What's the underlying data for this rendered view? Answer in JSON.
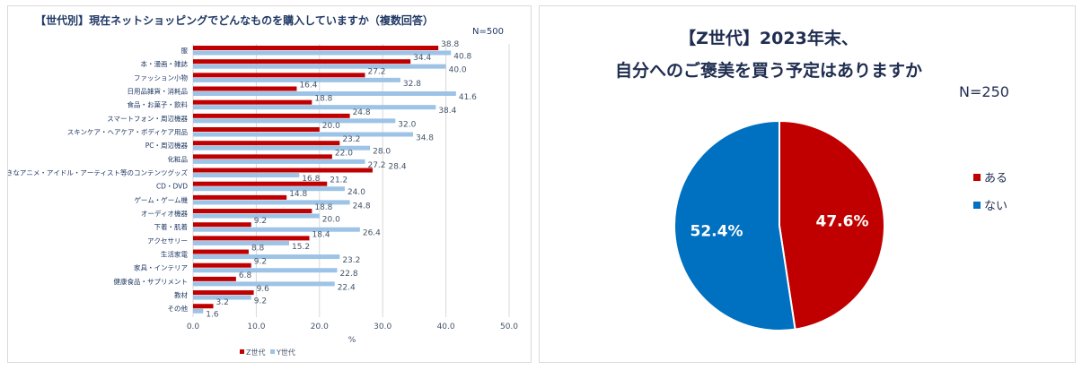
{
  "chart_data": [
    {
      "type": "bar",
      "orientation": "horizontal",
      "title": "【世代別】現在ネットショッピングでどんなものを購入していますか（複数回答）",
      "note": "N=500",
      "xlabel": "%",
      "xlim": [
        0,
        50
      ],
      "xticks": [
        "0.0",
        "10.0",
        "20.0",
        "30.0",
        "40.0",
        "50.0"
      ],
      "grid": true,
      "legend_position": "bottom",
      "categories": [
        "服",
        "本・漫画・雑誌",
        "ファッション小物",
        "日用品雑貨・消耗品",
        "食品・お菓子・飲料",
        "スマートフォン・周辺機器",
        "スキンケア・ヘアケア・ボディケア用品",
        "PC・周辺機器",
        "化粧品",
        "好きなアニメ・アイドル・アーティスト等のコンテンツグッズ",
        "CD・DVD",
        "ゲーム・ゲーム機",
        "オーディオ機器",
        "下着・肌着",
        "アクセサリー",
        "生活家電",
        "家具・インテリア",
        "健康食品・サプリメント",
        "教材",
        "その他"
      ],
      "series": [
        {
          "name": "Z世代",
          "color": "#c00000",
          "values": [
            38.8,
            34.4,
            27.2,
            16.4,
            18.8,
            24.8,
            20.0,
            23.2,
            22.0,
            28.4,
            21.2,
            14.8,
            18.8,
            9.2,
            18.4,
            8.8,
            9.2,
            6.8,
            9.6,
            3.2
          ]
        },
        {
          "name": "Y世代",
          "color": "#9dc3e6",
          "values": [
            40.8,
            40.0,
            32.8,
            41.6,
            38.4,
            32.0,
            34.8,
            28.0,
            27.2,
            16.8,
            24.0,
            24.8,
            20.0,
            26.4,
            15.2,
            23.2,
            22.8,
            22.4,
            9.2,
            1.6
          ]
        }
      ]
    },
    {
      "type": "pie",
      "title_lines": [
        "【Z世代】2023年末、",
        "自分へのご褒美を買う予定はありますか"
      ],
      "note": "N=250",
      "legend_position": "right",
      "slices": [
        {
          "label": "ある",
          "value": 47.6,
          "display": "47.6%",
          "color": "#c00000"
        },
        {
          "label": "ない",
          "value": 52.4,
          "display": "52.4%",
          "color": "#0070c0"
        }
      ]
    }
  ]
}
